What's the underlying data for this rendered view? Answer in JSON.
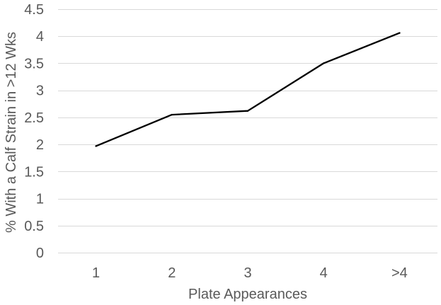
{
  "chart_data": {
    "type": "line",
    "categories": [
      "1",
      "2",
      "3",
      "4",
      ">4"
    ],
    "series": [
      {
        "values": [
          1.97,
          2.55,
          2.62,
          3.5,
          4.06
        ]
      }
    ],
    "xlabel": "Plate Appearances",
    "ylabel": "% With a Calf Strain in >12 Wks",
    "ylim": [
      0,
      4.5
    ],
    "yticks": [
      "0",
      "0.5",
      "1",
      "1.5",
      "2",
      "2.5",
      "3",
      "3.5",
      "4",
      "4.5"
    ],
    "grid": true,
    "legend": "none",
    "colors": {
      "line": "#000000",
      "grid": "#d9d9d9",
      "text": "#595959"
    }
  }
}
